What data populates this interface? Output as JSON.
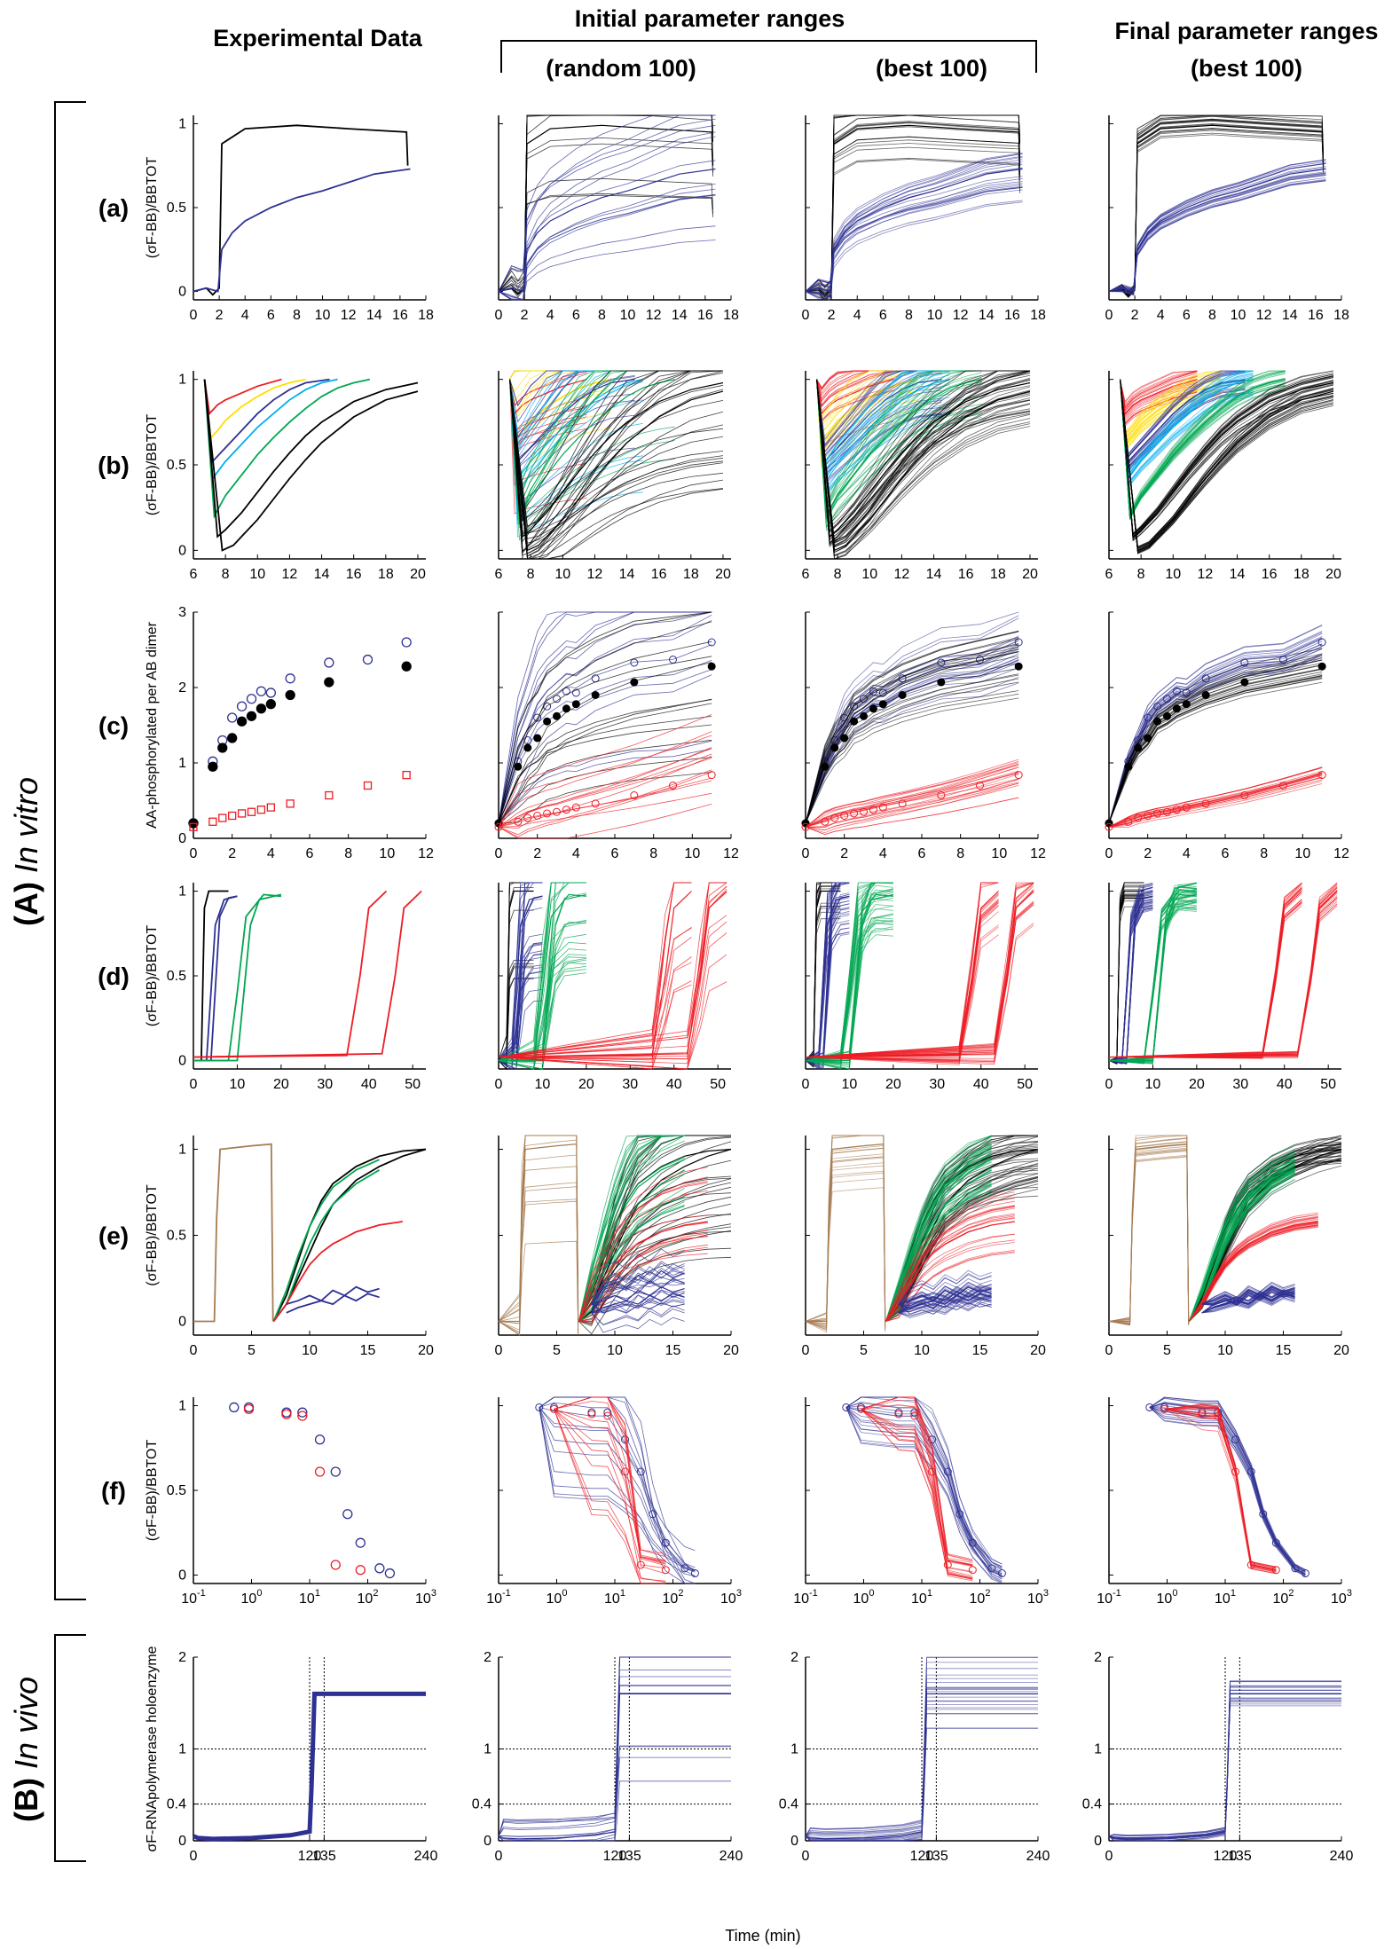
{
  "headers": {
    "experimental": "Experimental Data",
    "initial": "Initial parameter ranges",
    "random": "(random 100)",
    "best": "(best 100)",
    "final_line1": "Final parameter ranges",
    "final_line2": "(best 100)"
  },
  "group_labels": {
    "in_vitro_prefix": "(A) ",
    "in_vitro": "In vitro",
    "in_vivo_prefix": "(B) ",
    "in_vivo": "In vivo"
  },
  "time_label": "Time (min)",
  "colors": {
    "black": "#000000",
    "blue": "#2e3192",
    "red": "#ed1c24",
    "green": "#00a651",
    "yellow": "#ffde00",
    "cyan": "#00aeef",
    "teal": "#1b9e9e",
    "brown": "#a67c52",
    "navy": "#3c3c6e",
    "lightblue": "#5a5aa8"
  },
  "chart_data": [
    {
      "row": "a",
      "label": "(a)",
      "type": "line",
      "ylabel": "(σF-BB)/BBTOT",
      "xticks": [
        "0",
        "2",
        "4",
        "6",
        "8",
        "10",
        "12",
        "14",
        "16",
        "18"
      ],
      "xlim": [
        0,
        18
      ],
      "yticks": [
        "0",
        "0.5",
        "1"
      ],
      "ylim": [
        -0.05,
        1.05
      ],
      "series": [
        {
          "name": "black",
          "color": "black",
          "x": [
            0,
            1,
            1.5,
            2,
            2.2,
            4,
            8,
            12,
            16.5,
            16.6
          ],
          "y": [
            0,
            0.02,
            -0.02,
            0.02,
            0.88,
            0.97,
            0.99,
            0.97,
            0.95,
            0.75
          ]
        },
        {
          "name": "blue",
          "color": "blue",
          "x": [
            0,
            1,
            1.9,
            2.2,
            3,
            4,
            6,
            8,
            10,
            12,
            14,
            16.8
          ],
          "y": [
            0,
            0.02,
            0,
            0.25,
            0.35,
            0.42,
            0.5,
            0.56,
            0.6,
            0.65,
            0.7,
            0.73
          ]
        }
      ]
    },
    {
      "row": "b",
      "label": "(b)",
      "type": "line",
      "ylabel": "(σF-BB)/BBTOT",
      "xticks": [
        "6",
        "8",
        "10",
        "12",
        "14",
        "16",
        "18",
        "20"
      ],
      "xlim": [
        6,
        20.5
      ],
      "yticks": [
        "0",
        "0.5",
        "1"
      ],
      "ylim": [
        -0.05,
        1.05
      ],
      "series": [
        {
          "name": "red",
          "color": "red",
          "x": [
            6.7,
            7,
            7.5,
            8,
            9,
            10,
            11.5
          ],
          "y": [
            1,
            0.8,
            0.85,
            0.88,
            0.92,
            0.96,
            1
          ]
        },
        {
          "name": "yellow",
          "color": "yellow",
          "x": [
            6.7,
            7,
            7.5,
            8,
            9,
            10,
            11,
            12,
            13
          ],
          "y": [
            1,
            0.65,
            0.7,
            0.76,
            0.84,
            0.9,
            0.95,
            0.98,
            1
          ]
        },
        {
          "name": "blue",
          "color": "blue",
          "x": [
            6.7,
            7.2,
            8,
            9,
            10,
            11,
            12,
            13,
            14.5
          ],
          "y": [
            1,
            0.52,
            0.6,
            0.7,
            0.8,
            0.88,
            0.94,
            0.98,
            1
          ]
        },
        {
          "name": "cyan",
          "color": "cyan",
          "x": [
            6.7,
            7.2,
            8,
            9,
            10,
            11,
            12,
            13,
            14,
            15
          ],
          "y": [
            1,
            0.42,
            0.52,
            0.62,
            0.72,
            0.8,
            0.88,
            0.94,
            0.98,
            1
          ]
        },
        {
          "name": "green",
          "color": "green",
          "x": [
            6.7,
            7.3,
            8,
            9,
            10,
            11,
            12,
            13,
            14,
            15,
            16,
            17
          ],
          "y": [
            1,
            0.2,
            0.32,
            0.44,
            0.56,
            0.66,
            0.75,
            0.83,
            0.9,
            0.95,
            0.98,
            1
          ]
        },
        {
          "name": "black1",
          "color": "black",
          "x": [
            6.7,
            7.5,
            8,
            9,
            10,
            11,
            12,
            13,
            14,
            16,
            18,
            20
          ],
          "y": [
            1,
            0.08,
            0.12,
            0.22,
            0.34,
            0.46,
            0.57,
            0.67,
            0.75,
            0.87,
            0.94,
            0.98
          ]
        },
        {
          "name": "black2",
          "color": "black",
          "x": [
            6.7,
            7.8,
            8.5,
            9,
            10,
            11,
            12,
            13,
            14,
            16,
            18,
            20
          ],
          "y": [
            1,
            0,
            0.03,
            0.08,
            0.18,
            0.3,
            0.42,
            0.53,
            0.63,
            0.78,
            0.88,
            0.93
          ]
        }
      ]
    },
    {
      "row": "c",
      "label": "(c)",
      "type": "scatter",
      "ylabel": "AA-phosphorylated per AB dimer",
      "xticks": [
        "0",
        "2",
        "4",
        "6",
        "8",
        "10",
        "12"
      ],
      "xlim": [
        0,
        12
      ],
      "yticks": [
        "0",
        "1",
        "2",
        "3"
      ],
      "ylim": [
        0,
        3
      ],
      "series": [
        {
          "name": "blue-open",
          "marker": "open-circle",
          "color": "blue",
          "x": [
            0,
            1,
            1.5,
            2,
            2.5,
            3,
            3.5,
            4,
            5,
            7,
            9,
            11
          ],
          "y": [
            0.2,
            1.02,
            1.3,
            1.6,
            1.75,
            1.85,
            1.95,
            1.93,
            2.12,
            2.33,
            2.37,
            2.6
          ]
        },
        {
          "name": "black-filled",
          "marker": "filled-circle",
          "color": "black",
          "x": [
            0,
            1,
            1.5,
            2,
            2.5,
            3,
            3.5,
            4,
            5,
            7,
            11
          ],
          "y": [
            0.2,
            0.95,
            1.2,
            1.33,
            1.55,
            1.62,
            1.72,
            1.78,
            1.9,
            2.07,
            2.28
          ]
        },
        {
          "name": "red-square",
          "marker": "open-square",
          "color": "red",
          "x": [
            0,
            1,
            1.5,
            2,
            2.5,
            3,
            3.5,
            4,
            5,
            7,
            9,
            11
          ],
          "y": [
            0.15,
            0.22,
            0.27,
            0.3,
            0.33,
            0.35,
            0.38,
            0.41,
            0.46,
            0.57,
            0.7,
            0.84
          ]
        }
      ]
    },
    {
      "row": "d",
      "label": "(d)",
      "type": "line",
      "ylabel": "(σF-BB)/BBTOT",
      "xticks": [
        "0",
        "10",
        "20",
        "30",
        "40",
        "50"
      ],
      "xlim": [
        0,
        53
      ],
      "yticks": [
        "0",
        "0.5",
        "1"
      ],
      "ylim": [
        -0.05,
        1.05
      ],
      "series": [
        {
          "name": "black",
          "color": "black",
          "x": [
            0,
            1.8,
            2.5,
            3.5,
            8
          ],
          "y": [
            0,
            0,
            0.9,
            1,
            1
          ]
        },
        {
          "name": "blue1",
          "color": "blue",
          "x": [
            0,
            3,
            5,
            7,
            10
          ],
          "y": [
            0,
            0,
            0.8,
            0.95,
            0.97
          ]
        },
        {
          "name": "blue2",
          "color": "blue",
          "x": [
            0,
            4,
            6,
            8,
            10
          ],
          "y": [
            0,
            0,
            0.85,
            0.96,
            0.97
          ]
        },
        {
          "name": "green1",
          "color": "green",
          "x": [
            0,
            8,
            10,
            12,
            16,
            20
          ],
          "y": [
            0,
            0,
            0.4,
            0.85,
            0.98,
            0.97
          ]
        },
        {
          "name": "green2",
          "color": "green",
          "x": [
            0,
            10,
            13,
            15,
            20
          ],
          "y": [
            0,
            0,
            0.8,
            0.95,
            0.98
          ]
        },
        {
          "name": "red1",
          "color": "red",
          "x": [
            0,
            35,
            38,
            40,
            44
          ],
          "y": [
            0.02,
            0.03,
            0.5,
            0.9,
            1
          ]
        },
        {
          "name": "red2",
          "color": "red",
          "x": [
            0,
            43,
            46,
            48,
            52
          ],
          "y": [
            0.02,
            0.04,
            0.5,
            0.9,
            1
          ]
        }
      ]
    },
    {
      "row": "e",
      "label": "(e)",
      "type": "line",
      "ylabel": "(σF-BB)/BBTOT",
      "xticks": [
        "0",
        "5",
        "10",
        "15",
        "20"
      ],
      "xlim": [
        0,
        20
      ],
      "yticks": [
        "0",
        "0.5",
        "1"
      ],
      "ylim": [
        -0.08,
        1.08
      ],
      "series": [
        {
          "name": "brown",
          "color": "brown",
          "x": [
            0,
            1.8,
            2,
            2.3,
            5,
            6.7,
            6.85
          ],
          "y": [
            0,
            0,
            0.6,
            1,
            1.02,
            1.03,
            0
          ]
        },
        {
          "name": "black1",
          "color": "black",
          "x": [
            6.9,
            8,
            9,
            10,
            11,
            12,
            14,
            16,
            18,
            20
          ],
          "y": [
            0,
            0.15,
            0.35,
            0.55,
            0.7,
            0.8,
            0.9,
            0.96,
            0.99,
            1
          ]
        },
        {
          "name": "black2",
          "color": "black",
          "x": [
            6.9,
            8,
            9,
            10,
            11,
            12,
            14,
            16,
            18,
            20
          ],
          "y": [
            0,
            0.1,
            0.25,
            0.4,
            0.55,
            0.68,
            0.82,
            0.9,
            0.96,
            1
          ]
        },
        {
          "name": "green1",
          "color": "green",
          "x": [
            6.9,
            8,
            9,
            10,
            11,
            12,
            14,
            16
          ],
          "y": [
            0,
            0.18,
            0.38,
            0.55,
            0.68,
            0.78,
            0.88,
            0.94
          ]
        },
        {
          "name": "green2",
          "color": "green",
          "x": [
            6.9,
            8,
            9,
            10,
            11,
            12,
            14,
            16
          ],
          "y": [
            0,
            0.1,
            0.28,
            0.45,
            0.58,
            0.68,
            0.8,
            0.88
          ]
        },
        {
          "name": "red",
          "color": "red",
          "x": [
            6.9,
            8,
            9,
            10,
            11,
            12,
            14,
            16,
            18
          ],
          "y": [
            0,
            0.1,
            0.22,
            0.33,
            0.4,
            0.45,
            0.52,
            0.56,
            0.58
          ]
        },
        {
          "name": "blue1",
          "color": "blue",
          "x": [
            8,
            9,
            10,
            11,
            12,
            13,
            14,
            15,
            16
          ],
          "y": [
            0.1,
            0.12,
            0.15,
            0.12,
            0.18,
            0.15,
            0.2,
            0.17,
            0.19
          ]
        },
        {
          "name": "blue2",
          "color": "blue",
          "x": [
            8,
            9,
            10,
            11,
            12,
            13,
            14,
            15,
            16
          ],
          "y": [
            0.05,
            0.08,
            0.1,
            0.12,
            0.1,
            0.15,
            0.12,
            0.16,
            0.14
          ]
        }
      ]
    },
    {
      "row": "f",
      "label": "(f)",
      "type": "scatter",
      "xscale": "log",
      "ylabel": "(σF-BB)/BBTOT",
      "xticks": [
        "10",
        "10",
        "10",
        "10",
        "10"
      ],
      "xtick_exponents": [
        "-1",
        "0",
        "1",
        "2",
        "3"
      ],
      "xlim": [
        0.1,
        1000
      ],
      "yticks": [
        "0",
        "0.5",
        "1"
      ],
      "ylim": [
        -0.05,
        1.05
      ],
      "series": [
        {
          "name": "blue",
          "marker": "open-circle",
          "color": "blue",
          "x": [
            0.5,
            0.9,
            4,
            7.5,
            15,
            28,
            45,
            75,
            160,
            240
          ],
          "y": [
            0.99,
            0.99,
            0.96,
            0.96,
            0.8,
            0.61,
            0.36,
            0.19,
            0.04,
            0.01
          ]
        },
        {
          "name": "red",
          "marker": "open-circle",
          "color": "red",
          "x": [
            0.9,
            4,
            7.5,
            15,
            28,
            75
          ],
          "y": [
            0.98,
            0.95,
            0.94,
            0.61,
            0.06,
            0.03
          ]
        }
      ]
    },
    {
      "row": "B",
      "label": "",
      "type": "line",
      "ylabel": "σF-RNApolymerase holoenzyme",
      "xticks": [
        "0",
        "120",
        "135",
        "240"
      ],
      "xlim": [
        0,
        240
      ],
      "yticks": [
        "0",
        "0.4",
        "1",
        "2"
      ],
      "ylim": [
        0,
        2
      ],
      "reference_lines": {
        "x": [
          120,
          135
        ],
        "y": [
          0.4,
          1
        ]
      },
      "series": [
        {
          "name": "blue",
          "color": "blue",
          "x": [
            0,
            5,
            20,
            60,
            100,
            120,
            122,
            125,
            240
          ],
          "y": [
            0.05,
            0.03,
            0.02,
            0.03,
            0.06,
            0.1,
            0.6,
            1.6,
            1.6
          ]
        }
      ]
    }
  ]
}
